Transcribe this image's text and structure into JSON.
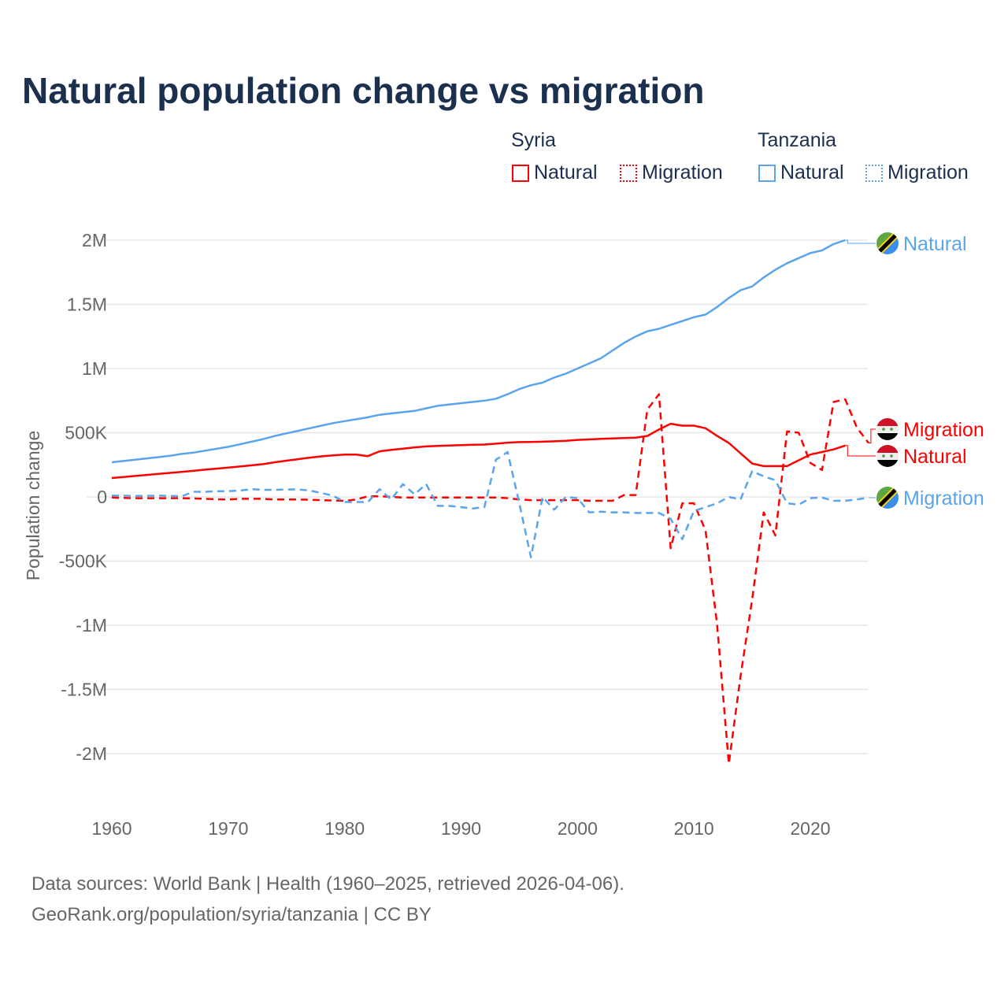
{
  "title": "Natural population change vs migration",
  "legend": {
    "groups": [
      {
        "name": "Syria",
        "items": [
          "Natural",
          "Migration"
        ]
      },
      {
        "name": "Tanzania",
        "items": [
          "Natural",
          "Migration"
        ]
      }
    ]
  },
  "colors": {
    "syria": "#ff0000",
    "tanzania": "#5ba4ec"
  },
  "footer": {
    "line1": "Data sources: World Bank | Health (1960–2025, retrieved 2026-04-06).",
    "line2": "GeoRank.org/population/syria/tanzania | CC BY"
  },
  "chart_data": {
    "type": "line",
    "title": "Natural population change vs migration",
    "xlabel": "",
    "ylabel": "Population change",
    "xlim": [
      1960,
      2025
    ],
    "ylim": [
      -2000000,
      2000000
    ],
    "xticks": [
      {
        "v": 1960,
        "label": "1960"
      },
      {
        "v": 1970,
        "label": "1970"
      },
      {
        "v": 1980,
        "label": "1980"
      },
      {
        "v": 1990,
        "label": "1990"
      },
      {
        "v": 2000,
        "label": "2000"
      },
      {
        "v": 2010,
        "label": "2010"
      },
      {
        "v": 2020,
        "label": "2020"
      }
    ],
    "yticks": [
      {
        "v": 2000000,
        "label": "2M"
      },
      {
        "v": 1500000,
        "label": "1.5M"
      },
      {
        "v": 1000000,
        "label": "1M"
      },
      {
        "v": 500000,
        "label": "500K"
      },
      {
        "v": 0,
        "label": "0"
      },
      {
        "v": -500000,
        "label": "-500K"
      },
      {
        "v": -1000000,
        "label": "-1M"
      },
      {
        "v": -1500000,
        "label": "-1.5M"
      },
      {
        "v": -2000000,
        "label": "-2M"
      }
    ],
    "series": [
      {
        "name": "Tanzania Natural",
        "country": "Tanzania",
        "kind": "Natural",
        "end_label": "Natural",
        "start": 1960,
        "values_k": [
          270,
          280,
          290,
          300,
          310,
          320,
          335,
          345,
          360,
          375,
          390,
          410,
          430,
          450,
          475,
          495,
          515,
          535,
          555,
          575,
          590,
          605,
          620,
          640,
          650,
          660,
          670,
          690,
          710,
          720,
          730,
          740,
          750,
          765,
          800,
          840,
          870,
          890,
          930,
          960,
          1000,
          1040,
          1080,
          1140,
          1200,
          1250,
          1290,
          1310,
          1340,
          1370,
          1400,
          1420,
          1480,
          1550,
          1610,
          1640,
          1710,
          1770,
          1820,
          1860,
          1900,
          1920,
          1970,
          2000
        ]
      },
      {
        "name": "Syria Natural",
        "country": "Syria",
        "kind": "Natural",
        "end_label": "Natural",
        "start": 1960,
        "values_k": [
          147,
          155,
          163,
          171,
          179,
          187,
          195,
          203,
          212,
          220,
          228,
          237,
          246,
          255,
          270,
          282,
          294,
          306,
          316,
          324,
          330,
          330,
          318,
          355,
          366,
          376,
          386,
          393,
          397,
          400,
          403,
          406,
          408,
          415,
          423,
          427,
          428,
          430,
          433,
          437,
          444,
          448,
          452,
          455,
          458,
          462,
          475,
          525,
          570,
          555,
          555,
          535,
          475,
          420,
          340,
          260,
          240,
          240,
          240,
          285,
          330,
          350,
          370,
          400
        ]
      },
      {
        "name": "Syria Migration",
        "country": "Syria",
        "kind": "Migration",
        "end_label": "Migration",
        "start": 1960,
        "values_k": [
          -5,
          -8,
          -10,
          -10,
          -10,
          -10,
          -10,
          -12,
          -15,
          -18,
          -20,
          -15,
          -15,
          -15,
          -20,
          -20,
          -20,
          -22,
          -25,
          -28,
          -30,
          -20,
          5,
          5,
          0,
          -5,
          -5,
          -5,
          -5,
          -5,
          -5,
          -5,
          -5,
          -5,
          -10,
          -20,
          -25,
          -25,
          -25,
          -25,
          -25,
          -30,
          -30,
          -30,
          15,
          15,
          680,
          800,
          -400,
          -50,
          -50,
          -260,
          -1000,
          -2080,
          -1400,
          -800,
          -120,
          -300,
          510,
          500,
          265,
          210,
          740,
          760,
          540,
          420
        ]
      },
      {
        "name": "Tanzania Migration",
        "country": "Tanzania",
        "kind": "Migration",
        "end_label": "Migration",
        "start": 1960,
        "values_k": [
          10,
          10,
          8,
          8,
          10,
          8,
          5,
          40,
          40,
          45,
          45,
          50,
          60,
          55,
          55,
          58,
          58,
          50,
          30,
          10,
          -40,
          -40,
          -40,
          60,
          -20,
          100,
          20,
          100,
          -70,
          -70,
          -80,
          -90,
          -80,
          290,
          350,
          -50,
          -470,
          0,
          -100,
          0,
          -10,
          -120,
          -115,
          -120,
          -120,
          -125,
          -125,
          -125,
          -170,
          -330,
          -110,
          -80,
          -50,
          0,
          -20,
          200,
          160,
          130,
          -50,
          -60,
          -10,
          -5,
          -30,
          -30,
          -20,
          -5
        ]
      }
    ]
  }
}
